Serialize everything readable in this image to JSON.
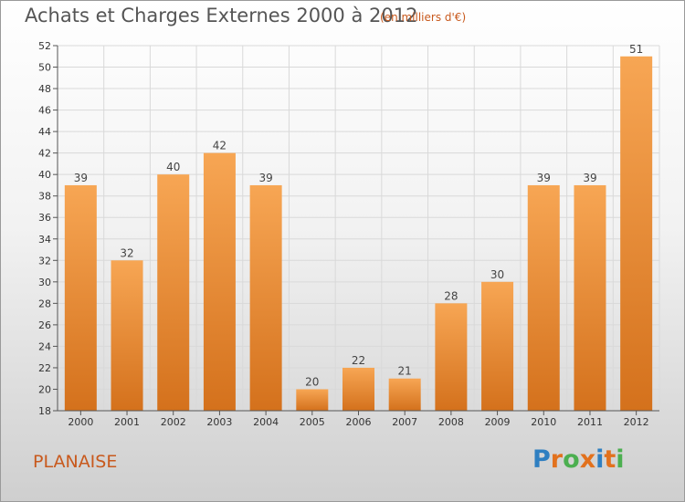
{
  "header": {
    "title": "Achats et Charges Externes 2000 à 2012",
    "subtitle": "(en milliers d'€)"
  },
  "footer": {
    "place": "PLANAISE",
    "brand_letters": [
      "P",
      "r",
      "o",
      "x",
      "i",
      "t",
      "i"
    ],
    "brand_colors": [
      "#2f7fc1",
      "#e2711d",
      "#4caf50",
      "#e2711d",
      "#2f7fc1",
      "#e2711d",
      "#4caf50"
    ]
  },
  "colors": {
    "bar_light": "#f7a654",
    "bar_dark": "#d4711c",
    "grid": "#d9d9d9",
    "axis": "#555555"
  },
  "chart_data": {
    "type": "bar",
    "categories": [
      "2000",
      "2001",
      "2002",
      "2003",
      "2004",
      "2005",
      "2006",
      "2007",
      "2008",
      "2009",
      "2010",
      "2011",
      "2012"
    ],
    "values": [
      39,
      32,
      40,
      42,
      39,
      20,
      22,
      21,
      28,
      30,
      39,
      39,
      51
    ],
    "title": "Achats et Charges Externes 2000 à 2012",
    "ylim": [
      18,
      52
    ],
    "yticks": [
      18,
      20,
      22,
      24,
      26,
      28,
      30,
      32,
      34,
      36,
      38,
      40,
      42,
      44,
      46,
      48,
      50,
      52
    ],
    "grid": true,
    "legend": "none"
  }
}
